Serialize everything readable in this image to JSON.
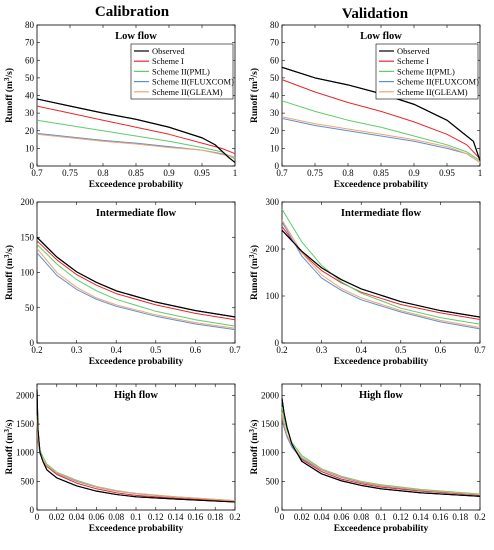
{
  "column_titles": [
    "Calibration",
    "Validation"
  ],
  "colors": {
    "Observed": "#000000",
    "Scheme I": "#e8262b",
    "Scheme II(PML)": "#5ccd6a",
    "Scheme II(FLUXCOM)": "#5b8fd6",
    "Scheme II(GLEAM)": "#f2a46c"
  },
  "chart_data": [
    {
      "type": "line",
      "column": "Calibration",
      "title": "Low flow",
      "xlabel": "Exceedence probability",
      "ylabel": "Runoff (m3/s)",
      "xlim": [
        0.7,
        1
      ],
      "ylim": [
        0,
        80
      ],
      "xticks": [
        "0.7",
        "0.75",
        "0.8",
        "0.85",
        "0.9",
        "0.95",
        "1"
      ],
      "yticks": [
        "0",
        "10",
        "20",
        "30",
        "40",
        "50",
        "60",
        "70",
        "80"
      ],
      "legend": [
        "Observed",
        "Scheme I",
        "Scheme II(PML)",
        "Scheme II(FLUXCOM)",
        "Scheme II(GLEAM)"
      ],
      "series": [
        {
          "name": "Observed",
          "x": [
            0.7,
            0.75,
            0.8,
            0.85,
            0.9,
            0.95,
            0.97,
            0.99,
            1.0
          ],
          "y": [
            38,
            34,
            30,
            26.5,
            22,
            16,
            12,
            5,
            2
          ]
        },
        {
          "name": "Scheme I",
          "x": [
            0.7,
            0.75,
            0.8,
            0.85,
            0.9,
            0.95,
            0.98,
            1.0
          ],
          "y": [
            34,
            30,
            26,
            22,
            18,
            13,
            10,
            7
          ]
        },
        {
          "name": "Scheme II(PML)",
          "x": [
            0.7,
            0.75,
            0.8,
            0.85,
            0.9,
            0.95,
            0.98,
            1.0
          ],
          "y": [
            26,
            23,
            20,
            17,
            14,
            10.5,
            8,
            4
          ]
        },
        {
          "name": "Scheme II(FLUXCOM)",
          "x": [
            0.7,
            0.75,
            0.8,
            0.85,
            0.9,
            0.95,
            0.98,
            1.0
          ],
          "y": [
            18.5,
            16.5,
            14.5,
            13,
            11,
            9,
            7,
            5
          ]
        },
        {
          "name": "Scheme II(GLEAM)",
          "x": [
            0.7,
            0.75,
            0.8,
            0.85,
            0.9,
            0.95,
            0.98,
            1.0
          ],
          "y": [
            18,
            16,
            14,
            12.5,
            10.5,
            9,
            6.5,
            5
          ]
        }
      ]
    },
    {
      "type": "line",
      "column": "Validation",
      "title": "Low flow",
      "xlabel": "Exceedence probability",
      "ylabel": "Runoff (m3/s)",
      "xlim": [
        0.7,
        1
      ],
      "ylim": [
        0,
        80
      ],
      "xticks": [
        "0.7",
        "0.75",
        "0.8",
        "0.85",
        "0.9",
        "0.95",
        "1"
      ],
      "yticks": [
        "0",
        "10",
        "20",
        "30",
        "40",
        "50",
        "60",
        "70",
        "80"
      ],
      "legend": [
        "Observed",
        "Scheme I",
        "Scheme II(PML)",
        "Scheme II(FLUXCOM)",
        "Scheme II(GLEAM)"
      ],
      "series": [
        {
          "name": "Observed",
          "x": [
            0.7,
            0.75,
            0.8,
            0.85,
            0.9,
            0.95,
            0.97,
            0.99,
            1.0
          ],
          "y": [
            56,
            50,
            46,
            41,
            35,
            26,
            20,
            14,
            3
          ]
        },
        {
          "name": "Scheme I",
          "x": [
            0.7,
            0.75,
            0.8,
            0.85,
            0.9,
            0.95,
            0.98,
            1.0
          ],
          "y": [
            49,
            42,
            36,
            31,
            25,
            18,
            12,
            4
          ]
        },
        {
          "name": "Scheme II(PML)",
          "x": [
            0.7,
            0.75,
            0.8,
            0.85,
            0.9,
            0.95,
            0.98,
            1.0
          ],
          "y": [
            37,
            31,
            26,
            22,
            17,
            12,
            8,
            3
          ]
        },
        {
          "name": "Scheme II(FLUXCOM)",
          "x": [
            0.7,
            0.75,
            0.8,
            0.85,
            0.9,
            0.95,
            0.98,
            1.0
          ],
          "y": [
            27,
            23,
            20,
            17,
            14,
            10,
            7,
            2
          ]
        },
        {
          "name": "Scheme II(GLEAM)",
          "x": [
            0.7,
            0.75,
            0.8,
            0.85,
            0.9,
            0.95,
            0.98,
            1.0
          ],
          "y": [
            28,
            24,
            21,
            18,
            15,
            11,
            7,
            2
          ]
        }
      ]
    },
    {
      "type": "line",
      "column": "Calibration",
      "title": "Intermediate flow",
      "xlabel": "Exceedence probability",
      "ylabel": "Runoff (m3/s)",
      "xlim": [
        0.2,
        0.7
      ],
      "ylim": [
        0,
        200
      ],
      "xticks": [
        "0.2",
        "0.3",
        "0.4",
        "0.5",
        "0.6",
        "0.7"
      ],
      "yticks": [
        "0",
        "50",
        "100",
        "150",
        "200"
      ],
      "series": [
        {
          "name": "Observed",
          "x": [
            0.2,
            0.25,
            0.3,
            0.35,
            0.4,
            0.5,
            0.6,
            0.7
          ],
          "y": [
            150,
            122,
            101,
            86,
            74,
            58,
            46,
            37
          ]
        },
        {
          "name": "Scheme I",
          "x": [
            0.2,
            0.25,
            0.3,
            0.35,
            0.4,
            0.5,
            0.6,
            0.7
          ],
          "y": [
            145,
            118,
            97,
            82,
            70,
            54,
            42,
            33
          ]
        },
        {
          "name": "Scheme II(PML)",
          "x": [
            0.2,
            0.25,
            0.3,
            0.35,
            0.4,
            0.5,
            0.6,
            0.7
          ],
          "y": [
            140,
            112,
            90,
            74,
            62,
            45,
            33,
            24
          ]
        },
        {
          "name": "Scheme II(FLUXCOM)",
          "x": [
            0.2,
            0.25,
            0.3,
            0.35,
            0.4,
            0.5,
            0.6,
            0.7
          ],
          "y": [
            128,
            96,
            76,
            62,
            52,
            38,
            27,
            19
          ]
        },
        {
          "name": "Scheme II(GLEAM)",
          "x": [
            0.2,
            0.25,
            0.3,
            0.35,
            0.4,
            0.5,
            0.6,
            0.7
          ],
          "y": [
            134,
            100,
            79,
            64,
            54,
            40,
            29,
            21
          ]
        }
      ]
    },
    {
      "type": "line",
      "column": "Validation",
      "title": "Intermediate flow",
      "xlabel": "Exceedence probability",
      "ylabel": "Runoff (m3/s)",
      "xlim": [
        0.2,
        0.7
      ],
      "ylim": [
        0,
        300
      ],
      "xticks": [
        "0.2",
        "0.3",
        "0.4",
        "0.5",
        "0.6",
        "0.7"
      ],
      "yticks": [
        "0",
        "100",
        "200",
        "300"
      ],
      "series": [
        {
          "name": "Observed",
          "x": [
            0.2,
            0.25,
            0.3,
            0.35,
            0.4,
            0.5,
            0.6,
            0.7
          ],
          "y": [
            240,
            195,
            160,
            135,
            115,
            88,
            69,
            55
          ]
        },
        {
          "name": "Scheme I",
          "x": [
            0.2,
            0.25,
            0.3,
            0.35,
            0.4,
            0.5,
            0.6,
            0.7
          ],
          "y": [
            248,
            192,
            154,
            128,
            108,
            82,
            64,
            50
          ]
        },
        {
          "name": "Scheme II(PML)",
          "x": [
            0.2,
            0.25,
            0.3,
            0.35,
            0.4,
            0.5,
            0.6,
            0.7
          ],
          "y": [
            285,
            215,
            165,
            130,
            106,
            74,
            54,
            40
          ]
        },
        {
          "name": "Scheme II(FLUXCOM)",
          "x": [
            0.2,
            0.25,
            0.3,
            0.35,
            0.4,
            0.5,
            0.6,
            0.7
          ],
          "y": [
            258,
            185,
            138,
            112,
            92,
            66,
            45,
            30
          ]
        },
        {
          "name": "Scheme II(GLEAM)",
          "x": [
            0.2,
            0.25,
            0.3,
            0.35,
            0.4,
            0.5,
            0.6,
            0.7
          ],
          "y": [
            262,
            192,
            145,
            116,
            96,
            69,
            48,
            33
          ]
        }
      ]
    },
    {
      "type": "line",
      "column": "Calibration",
      "title": "High flow",
      "xlabel": "Exceedence probability",
      "ylabel": "Runoff (m3/s)",
      "xlim": [
        0,
        0.2
      ],
      "ylim": [
        0,
        2200
      ],
      "xticks": [
        "0",
        "0.02",
        "0.04",
        "0.06",
        "0.08",
        "0.1",
        "0.12",
        "0.14",
        "0.16",
        "0.18",
        "0.2"
      ],
      "yticks": [
        "0",
        "500",
        "1000",
        "1500",
        "2000"
      ],
      "series": [
        {
          "name": "Observed",
          "x": [
            0,
            0.001,
            0.003,
            0.006,
            0.01,
            0.02,
            0.04,
            0.06,
            0.08,
            0.1,
            0.14,
            0.2
          ],
          "y": [
            2100,
            1400,
            1000,
            850,
            700,
            560,
            420,
            330,
            270,
            230,
            190,
            140
          ]
        },
        {
          "name": "Scheme I",
          "x": [
            0,
            0.001,
            0.003,
            0.006,
            0.01,
            0.02,
            0.04,
            0.06,
            0.08,
            0.1,
            0.14,
            0.2
          ],
          "y": [
            1600,
            1250,
            1000,
            880,
            760,
            620,
            470,
            370,
            300,
            255,
            205,
            150
          ]
        },
        {
          "name": "Scheme II(PML)",
          "x": [
            0,
            0.001,
            0.003,
            0.006,
            0.01,
            0.02,
            0.04,
            0.06,
            0.08,
            0.1,
            0.14,
            0.2
          ],
          "y": [
            1650,
            1300,
            1050,
            930,
            800,
            660,
            520,
            410,
            340,
            290,
            230,
            165
          ]
        },
        {
          "name": "Scheme II(FLUXCOM)",
          "x": [
            0,
            0.001,
            0.003,
            0.006,
            0.01,
            0.02,
            0.04,
            0.06,
            0.08,
            0.1,
            0.14,
            0.2
          ],
          "y": [
            1550,
            1200,
            980,
            870,
            770,
            640,
            500,
            400,
            330,
            285,
            225,
            160
          ]
        },
        {
          "name": "Scheme II(GLEAM)",
          "x": [
            0,
            0.001,
            0.003,
            0.006,
            0.01,
            0.02,
            0.04,
            0.06,
            0.08,
            0.1,
            0.14,
            0.2
          ],
          "y": [
            1580,
            1220,
            990,
            880,
            780,
            650,
            510,
            405,
            335,
            290,
            228,
            162
          ]
        }
      ]
    },
    {
      "type": "line",
      "column": "Validation",
      "title": "High flow",
      "xlabel": "Exceedence probability",
      "ylabel": "Runoff (m3/s)",
      "xlim": [
        0,
        0.2
      ],
      "ylim": [
        0,
        2200
      ],
      "xticks": [
        "0",
        "0.02",
        "0.04",
        "0.06",
        "0.08",
        "0.1",
        "0.12",
        "0.14",
        "0.16",
        "0.18",
        "0.2"
      ],
      "yticks": [
        "0",
        "500",
        "1000",
        "1500",
        "2000"
      ],
      "series": [
        {
          "name": "Observed",
          "x": [
            0,
            0.002,
            0.005,
            0.01,
            0.02,
            0.04,
            0.06,
            0.08,
            0.1,
            0.14,
            0.2
          ],
          "y": [
            1950,
            1700,
            1450,
            1150,
            850,
            630,
            510,
            430,
            370,
            300,
            240
          ]
        },
        {
          "name": "Scheme I",
          "x": [
            0,
            0.002,
            0.005,
            0.01,
            0.02,
            0.04,
            0.06,
            0.08,
            0.1,
            0.14,
            0.2
          ],
          "y": [
            1600,
            1450,
            1300,
            1100,
            880,
            670,
            540,
            460,
            400,
            330,
            260
          ]
        },
        {
          "name": "Scheme II(PML)",
          "x": [
            0,
            0.002,
            0.005,
            0.01,
            0.02,
            0.04,
            0.06,
            0.08,
            0.1,
            0.14,
            0.2
          ],
          "y": [
            1800,
            1600,
            1400,
            1180,
            950,
            720,
            590,
            500,
            440,
            360,
            280
          ]
        },
        {
          "name": "Scheme II(FLUXCOM)",
          "x": [
            0,
            0.002,
            0.005,
            0.01,
            0.02,
            0.04,
            0.06,
            0.08,
            0.1,
            0.14,
            0.2
          ],
          "y": [
            1650,
            1450,
            1280,
            1100,
            900,
            700,
            570,
            480,
            420,
            340,
            265
          ]
        },
        {
          "name": "Scheme II(GLEAM)",
          "x": [
            0,
            0.002,
            0.005,
            0.01,
            0.02,
            0.04,
            0.06,
            0.08,
            0.1,
            0.14,
            0.2
          ],
          "y": [
            1700,
            1500,
            1320,
            1130,
            920,
            710,
            580,
            490,
            430,
            350,
            270
          ]
        }
      ]
    }
  ]
}
